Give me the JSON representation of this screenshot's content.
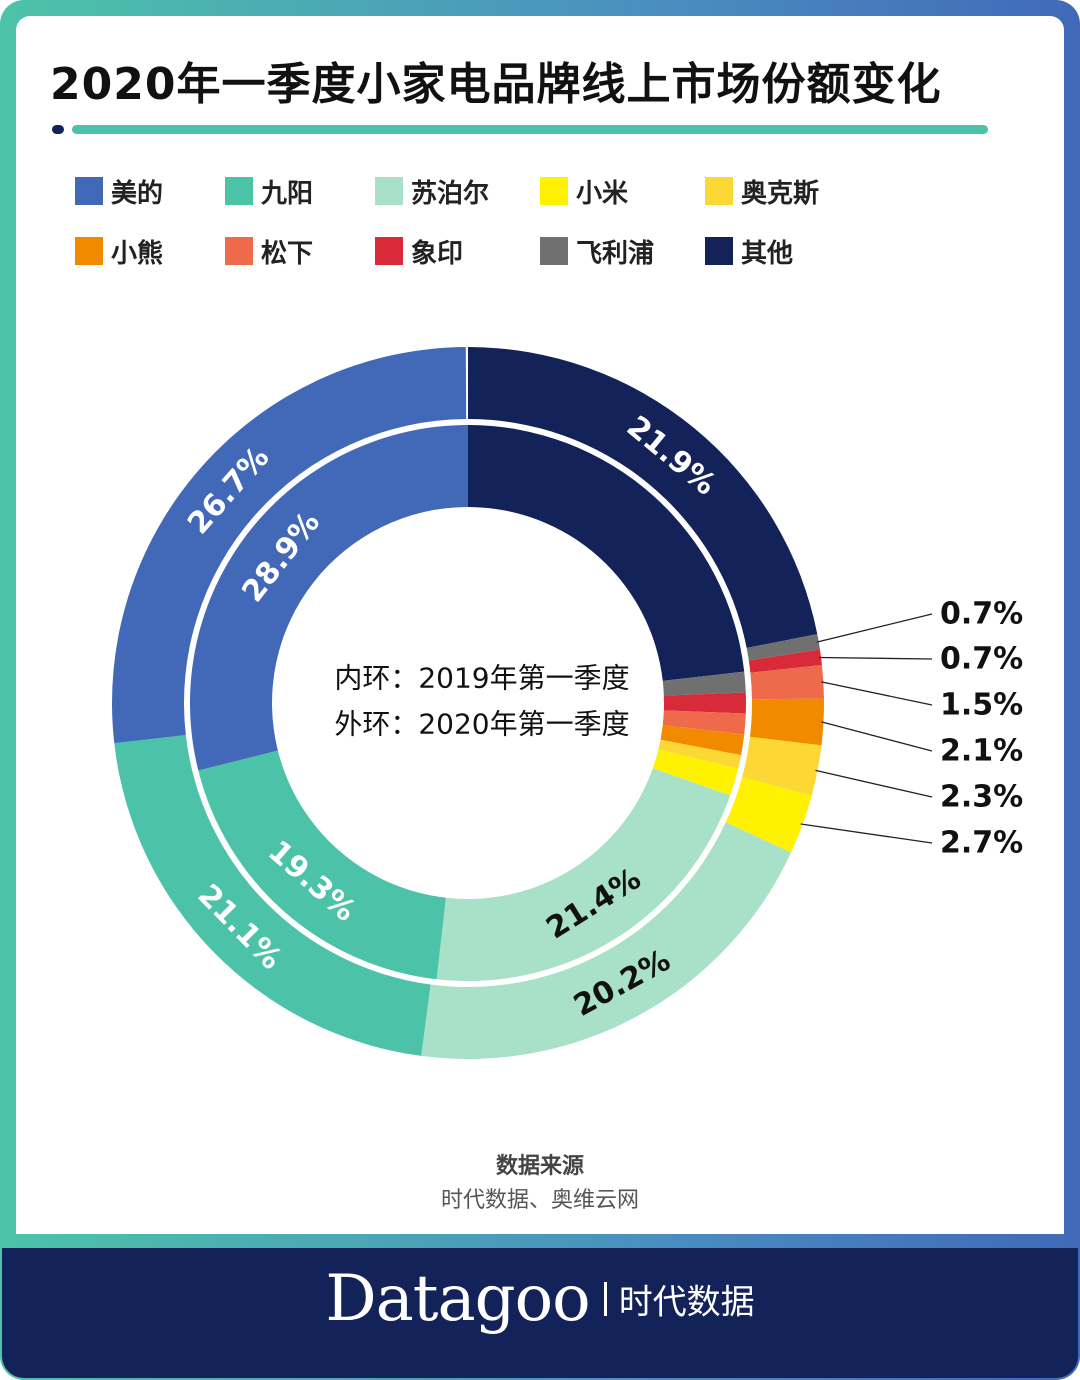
{
  "title": "2020年一季度小家电品牌线上市场份额变化",
  "legend": [
    {
      "name": "美的",
      "color": "#4169B8"
    },
    {
      "name": "九阳",
      "color": "#4CC3A8"
    },
    {
      "name": "苏泊尔",
      "color": "#A8E0C8"
    },
    {
      "name": "小米",
      "color": "#FFF200"
    },
    {
      "name": "奥克斯",
      "color": "#FDD835"
    },
    {
      "name": "小熊",
      "color": "#F28A00"
    },
    {
      "name": "松下",
      "color": "#EE6A4A"
    },
    {
      "name": "象印",
      "color": "#D92A3A"
    },
    {
      "name": "飞利浦",
      "color": "#707070"
    },
    {
      "name": "其他",
      "color": "#13235A"
    }
  ],
  "chart_data": {
    "type": "pie",
    "variant": "double-donut",
    "center_labels": [
      "内环：2019年第一季度",
      "外环：2020年第一季度"
    ],
    "categories": [
      "其他",
      "飞利浦",
      "象印",
      "松下",
      "小熊",
      "奥克斯",
      "小米",
      "苏泊尔",
      "九阳",
      "美的"
    ],
    "series": [
      {
        "name": "外环：2020年第一季度",
        "ring": "outer",
        "values": [
          21.9,
          0.7,
          0.7,
          1.5,
          2.1,
          2.3,
          2.7,
          20.2,
          21.1,
          26.7
        ],
        "labels": [
          "21.9%",
          "0.7%",
          "0.7%",
          "1.5%",
          "2.1%",
          "2.3%",
          "2.7%",
          "20.2%",
          "21.1%",
          "26.7%"
        ]
      },
      {
        "name": "内环：2019年第一季度",
        "ring": "inner",
        "values": [
          23.2,
          1.2,
          1.2,
          1.2,
          1.2,
          0.8,
          1.6,
          21.4,
          19.3,
          28.9
        ],
        "labels": [
          "",
          "",
          "",
          "",
          "",
          "",
          "",
          "21.4%",
          "19.3%",
          "28.9%"
        ]
      }
    ],
    "colors": [
      "#13235A",
      "#707070",
      "#D92A3A",
      "#EE6A4A",
      "#F28A00",
      "#FDD835",
      "#FFF200",
      "#A8E0C8",
      "#4CC3A8",
      "#4169B8"
    ],
    "start": "top",
    "direction": "clockwise",
    "legend_position": "top"
  },
  "source_title": "数据来源",
  "source": "时代数据、奥维云网",
  "footer": {
    "brand_en": "Datagoo",
    "brand_cn": "时代数据"
  }
}
